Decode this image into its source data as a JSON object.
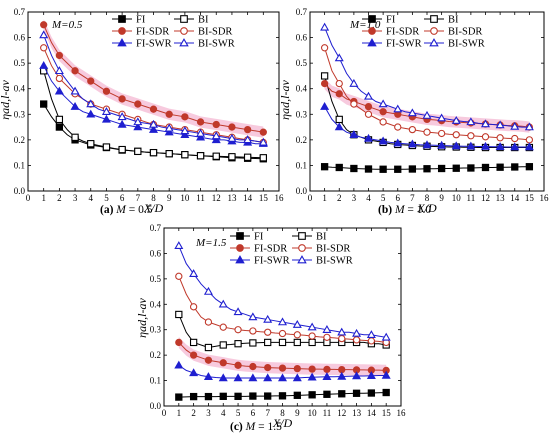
{
  "chart_data": [
    {
      "type": "line",
      "annotation": "M=0.5",
      "caption_letter": "(a)",
      "caption_text": "M = 0.5",
      "xlabel": "X/D",
      "ylabel": "ηad,l-av",
      "xlim": [
        0,
        16
      ],
      "ylim": [
        0,
        0.7
      ],
      "xticks": [
        0,
        1,
        2,
        3,
        4,
        5,
        6,
        7,
        8,
        9,
        10,
        11,
        12,
        13,
        14,
        15,
        16
      ],
      "yticks": [
        0.0,
        0.1,
        0.2,
        0.3,
        0.4,
        0.5,
        0.6,
        0.7
      ],
      "x": [
        1,
        1.5,
        2,
        2.5,
        3,
        3.5,
        4,
        4.5,
        5,
        5.5,
        6,
        6.5,
        7,
        7.5,
        8,
        8.5,
        9,
        9.5,
        10,
        10.5,
        11,
        11.5,
        12,
        12.5,
        13,
        13.5,
        14,
        14.5,
        15
      ],
      "series": [
        {
          "name": "FI",
          "values": [
            0.34,
            0.29,
            0.25,
            0.22,
            0.2,
            0.19,
            0.18,
            0.175,
            0.17,
            0.165,
            0.16,
            0.158,
            0.155,
            0.152,
            0.15,
            0.148,
            0.146,
            0.144,
            0.142,
            0.14,
            0.138,
            0.136,
            0.134,
            0.132,
            0.13,
            0.129,
            0.128,
            0.127,
            0.126
          ]
        },
        {
          "name": "BI",
          "values": [
            0.47,
            0.36,
            0.28,
            0.24,
            0.21,
            0.195,
            0.185,
            0.178,
            0.172,
            0.166,
            0.162,
            0.158,
            0.155,
            0.152,
            0.15,
            0.148,
            0.146,
            0.144,
            0.142,
            0.14,
            0.138,
            0.137,
            0.136,
            0.135,
            0.134,
            0.133,
            0.132,
            0.131,
            0.13
          ]
        },
        {
          "name": "FI-SDR",
          "values": [
            0.65,
            0.58,
            0.53,
            0.5,
            0.47,
            0.45,
            0.43,
            0.41,
            0.39,
            0.375,
            0.36,
            0.35,
            0.34,
            0.33,
            0.32,
            0.31,
            0.3,
            0.295,
            0.29,
            0.28,
            0.27,
            0.265,
            0.26,
            0.255,
            0.25,
            0.245,
            0.24,
            0.235,
            0.23
          ]
        },
        {
          "name": "BI-SDR",
          "values": [
            0.56,
            0.49,
            0.44,
            0.41,
            0.38,
            0.36,
            0.34,
            0.33,
            0.32,
            0.31,
            0.3,
            0.29,
            0.28,
            0.27,
            0.26,
            0.255,
            0.25,
            0.245,
            0.24,
            0.235,
            0.23,
            0.225,
            0.22,
            0.215,
            0.21,
            0.205,
            0.2,
            0.195,
            0.19
          ]
        },
        {
          "name": "FI-SWR",
          "values": [
            0.49,
            0.43,
            0.39,
            0.36,
            0.33,
            0.31,
            0.3,
            0.29,
            0.28,
            0.27,
            0.26,
            0.255,
            0.25,
            0.245,
            0.24,
            0.235,
            0.23,
            0.225,
            0.22,
            0.215,
            0.21,
            0.205,
            0.2,
            0.2,
            0.195,
            0.19,
            0.19,
            0.185,
            0.185
          ]
        },
        {
          "name": "BI-SWR",
          "values": [
            0.61,
            0.53,
            0.47,
            0.43,
            0.39,
            0.36,
            0.34,
            0.32,
            0.31,
            0.3,
            0.29,
            0.28,
            0.27,
            0.265,
            0.26,
            0.25,
            0.245,
            0.24,
            0.235,
            0.23,
            0.225,
            0.22,
            0.215,
            0.21,
            0.205,
            0.2,
            0.2,
            0.195,
            0.19
          ]
        }
      ]
    },
    {
      "type": "line",
      "annotation": "M=1.0",
      "caption_letter": "(b)",
      "caption_text": "M = 1.0",
      "xlabel": "X/D",
      "ylabel": "ηad,l-av",
      "xlim": [
        0,
        16
      ],
      "ylim": [
        0,
        0.7
      ],
      "xticks": [
        0,
        1,
        2,
        3,
        4,
        5,
        6,
        7,
        8,
        9,
        10,
        11,
        12,
        13,
        14,
        15,
        16
      ],
      "yticks": [
        0.0,
        0.1,
        0.2,
        0.3,
        0.4,
        0.5,
        0.6,
        0.7
      ],
      "x": [
        1,
        1.5,
        2,
        2.5,
        3,
        3.5,
        4,
        4.5,
        5,
        5.5,
        6,
        6.5,
        7,
        7.5,
        8,
        8.5,
        9,
        9.5,
        10,
        10.5,
        11,
        11.5,
        12,
        12.5,
        13,
        13.5,
        14,
        14.5,
        15
      ],
      "series": [
        {
          "name": "FI",
          "values": [
            0.095,
            0.093,
            0.092,
            0.09,
            0.088,
            0.087,
            0.086,
            0.085,
            0.085,
            0.085,
            0.085,
            0.085,
            0.086,
            0.086,
            0.087,
            0.087,
            0.088,
            0.088,
            0.089,
            0.09,
            0.09,
            0.091,
            0.092,
            0.092,
            0.093,
            0.093,
            0.094,
            0.095,
            0.095
          ]
        },
        {
          "name": "BI",
          "values": [
            0.45,
            0.35,
            0.28,
            0.24,
            0.22,
            0.21,
            0.2,
            0.195,
            0.19,
            0.185,
            0.182,
            0.18,
            0.178,
            0.176,
            0.175,
            0.174,
            0.173,
            0.172,
            0.172,
            0.171,
            0.171,
            0.17,
            0.17,
            0.17,
            0.17,
            0.17,
            0.17,
            0.17,
            0.17
          ]
        },
        {
          "name": "FI-SDR",
          "values": [
            0.42,
            0.39,
            0.38,
            0.36,
            0.35,
            0.34,
            0.33,
            0.32,
            0.31,
            0.305,
            0.3,
            0.295,
            0.29,
            0.285,
            0.28,
            0.278,
            0.275,
            0.272,
            0.27,
            0.268,
            0.266,
            0.264,
            0.262,
            0.26,
            0.258,
            0.256,
            0.255,
            0.253,
            0.25
          ]
        },
        {
          "name": "BI-SDR",
          "values": [
            0.56,
            0.47,
            0.42,
            0.37,
            0.34,
            0.32,
            0.3,
            0.285,
            0.27,
            0.26,
            0.25,
            0.245,
            0.24,
            0.235,
            0.23,
            0.228,
            0.225,
            0.222,
            0.22,
            0.218,
            0.216,
            0.214,
            0.212,
            0.21,
            0.208,
            0.206,
            0.205,
            0.203,
            0.2
          ]
        },
        {
          "name": "FI-SWR",
          "values": [
            0.33,
            0.28,
            0.25,
            0.23,
            0.22,
            0.21,
            0.205,
            0.2,
            0.195,
            0.19,
            0.187,
            0.185,
            0.183,
            0.181,
            0.18,
            0.179,
            0.178,
            0.177,
            0.176,
            0.175,
            0.175,
            0.174,
            0.174,
            0.173,
            0.173,
            0.172,
            0.172,
            0.172,
            0.172
          ]
        },
        {
          "name": "BI-SWR",
          "values": [
            0.64,
            0.57,
            0.52,
            0.46,
            0.42,
            0.39,
            0.37,
            0.35,
            0.34,
            0.33,
            0.32,
            0.31,
            0.305,
            0.3,
            0.295,
            0.29,
            0.285,
            0.28,
            0.275,
            0.272,
            0.27,
            0.265,
            0.262,
            0.26,
            0.258,
            0.255,
            0.252,
            0.25,
            0.25
          ]
        }
      ]
    },
    {
      "type": "line",
      "annotation": "M=1.5",
      "caption_letter": "(c)",
      "caption_text": "M = 1.5",
      "xlabel": "X/D",
      "ylabel": "ηad,l-av",
      "xlim": [
        0,
        16
      ],
      "ylim": [
        0,
        0.7
      ],
      "xticks": [
        0,
        1,
        2,
        3,
        4,
        5,
        6,
        7,
        8,
        9,
        10,
        11,
        12,
        13,
        14,
        15,
        16
      ],
      "yticks": [
        0.0,
        0.1,
        0.2,
        0.3,
        0.4,
        0.5,
        0.6,
        0.7
      ],
      "x": [
        1,
        1.5,
        2,
        2.5,
        3,
        3.5,
        4,
        4.5,
        5,
        5.5,
        6,
        6.5,
        7,
        7.5,
        8,
        8.5,
        9,
        9.5,
        10,
        10.5,
        11,
        11.5,
        12,
        12.5,
        13,
        13.5,
        14,
        14.5,
        15
      ],
      "series": [
        {
          "name": "FI",
          "values": [
            0.035,
            0.036,
            0.037,
            0.037,
            0.037,
            0.037,
            0.038,
            0.038,
            0.038,
            0.038,
            0.039,
            0.039,
            0.039,
            0.04,
            0.04,
            0.041,
            0.042,
            0.043,
            0.044,
            0.045,
            0.046,
            0.047,
            0.048,
            0.049,
            0.05,
            0.05,
            0.051,
            0.052,
            0.053
          ]
        },
        {
          "name": "BI",
          "values": [
            0.36,
            0.29,
            0.25,
            0.24,
            0.23,
            0.235,
            0.24,
            0.242,
            0.245,
            0.247,
            0.248,
            0.249,
            0.25,
            0.25,
            0.25,
            0.25,
            0.25,
            0.25,
            0.25,
            0.25,
            0.25,
            0.25,
            0.25,
            0.25,
            0.25,
            0.25,
            0.245,
            0.245,
            0.24
          ]
        },
        {
          "name": "FI-SDR",
          "values": [
            0.25,
            0.22,
            0.2,
            0.19,
            0.18,
            0.175,
            0.17,
            0.165,
            0.16,
            0.157,
            0.155,
            0.153,
            0.151,
            0.15,
            0.149,
            0.148,
            0.147,
            0.146,
            0.145,
            0.145,
            0.144,
            0.144,
            0.143,
            0.143,
            0.142,
            0.142,
            0.141,
            0.141,
            0.14
          ]
        },
        {
          "name": "BI-SDR",
          "values": [
            0.51,
            0.44,
            0.39,
            0.35,
            0.33,
            0.32,
            0.31,
            0.305,
            0.3,
            0.297,
            0.295,
            0.292,
            0.29,
            0.287,
            0.285,
            0.282,
            0.28,
            0.278,
            0.275,
            0.272,
            0.27,
            0.268,
            0.265,
            0.263,
            0.26,
            0.258,
            0.256,
            0.254,
            0.25
          ]
        },
        {
          "name": "FI-SWR",
          "values": [
            0.16,
            0.14,
            0.13,
            0.12,
            0.115,
            0.112,
            0.11,
            0.11,
            0.11,
            0.11,
            0.11,
            0.11,
            0.11,
            0.11,
            0.11,
            0.11,
            0.11,
            0.112,
            0.113,
            0.114,
            0.115,
            0.115,
            0.116,
            0.117,
            0.118,
            0.118,
            0.119,
            0.12,
            0.12
          ]
        },
        {
          "name": "BI-SWR",
          "values": [
            0.63,
            0.56,
            0.52,
            0.48,
            0.45,
            0.42,
            0.4,
            0.38,
            0.37,
            0.36,
            0.35,
            0.345,
            0.34,
            0.335,
            0.33,
            0.325,
            0.32,
            0.315,
            0.31,
            0.305,
            0.3,
            0.295,
            0.29,
            0.29,
            0.285,
            0.28,
            0.28,
            0.275,
            0.27
          ]
        }
      ]
    }
  ],
  "styles": {
    "FI": {
      "color": "#000000",
      "marker": "square",
      "fill": "filled"
    },
    "BI": {
      "color": "#000000",
      "marker": "square",
      "fill": "open"
    },
    "FI-SDR": {
      "color": "#c0392b",
      "marker": "circle",
      "fill": "filled"
    },
    "BI-SDR": {
      "color": "#c0392b",
      "marker": "circle",
      "fill": "open"
    },
    "FI-SWR": {
      "color": "#1f1fd0",
      "marker": "triangle",
      "fill": "filled"
    },
    "BI-SWR": {
      "color": "#1f1fd0",
      "marker": "triangle",
      "fill": "open"
    },
    "band_color": "#f2a6c8"
  }
}
